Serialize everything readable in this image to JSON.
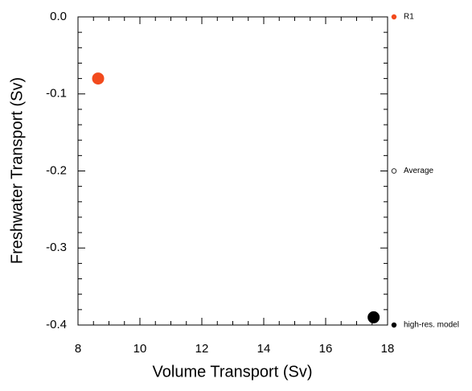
{
  "chart_data": {
    "type": "scatter",
    "xlabel": "Volume Transport (Sv)",
    "ylabel": "Freshwater Transport (Sv)",
    "xlim": [
      8,
      18
    ],
    "xticks": [
      8,
      10,
      12,
      14,
      16,
      18
    ],
    "ylim": [
      -0.4,
      0
    ],
    "yticks": [
      {
        "value": 0,
        "label": "0.0"
      },
      -0.1,
      -0.2,
      -0.3,
      -0.4
    ],
    "series": [
      {
        "name": "R1",
        "color": "#f24a1d",
        "marker": "filled",
        "x": [
          8.65
        ],
        "values": [
          -0.08
        ]
      },
      {
        "name": "Average",
        "color": "#000000",
        "marker": "open",
        "x": [],
        "values": []
      },
      {
        "name": "high-res. model",
        "color": "#000000",
        "marker": "filled",
        "x": [
          17.55
        ],
        "values": [
          -0.39
        ]
      }
    ]
  }
}
